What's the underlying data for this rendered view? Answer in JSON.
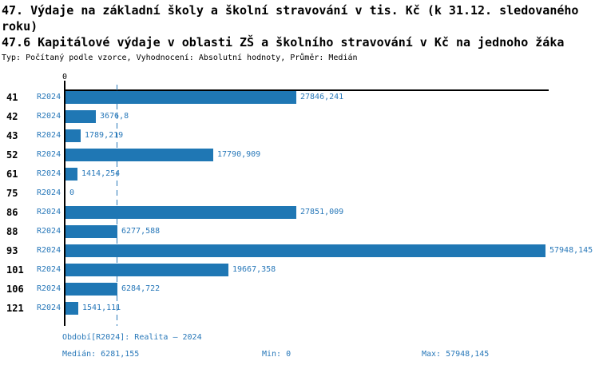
{
  "title": {
    "line1": "47. Výdaje na základní školy a školní stravování v tis. Kč (k 31.12. sledovaného roku)",
    "line2": "47.6 Kapitálové výdaje v oblasti ZŠ a školního stravování v Kč na jednoho žáka",
    "meta": "Typ: Počítaný podle vzorce, Vyhodnocení: Absolutní hodnoty, Průměr: Medián"
  },
  "colors": {
    "bar": "#1f77b4",
    "accent_text": "#2878b9",
    "axis": "#000000"
  },
  "chart_data": {
    "type": "bar",
    "orientation": "horizontal",
    "title": "47.6 Kapitálové výdaje v oblasti ZŠ a školního stravování v Kč na jednoho žáka",
    "categories": [
      "41",
      "42",
      "43",
      "52",
      "61",
      "75",
      "86",
      "88",
      "93",
      "101",
      "106",
      "121"
    ],
    "series": [
      {
        "name": "R2024",
        "values": [
          27846.241,
          3676.8,
          1789.219,
          17790.909,
          1414.254,
          0,
          27851.009,
          6277.588,
          57948.145,
          19667.358,
          6284.722,
          1541.111
        ],
        "value_labels": [
          "27846,241",
          "3676,8",
          "1789,219",
          "17790,909",
          "1414,254",
          "0",
          "27851,009",
          "6277,588",
          "57948,145",
          "19667,358",
          "6284,722",
          "1541,111"
        ]
      }
    ],
    "x_axis": {
      "zero_label": "0",
      "min": 0,
      "max": 57948.145
    },
    "median_line_value": 6281.155,
    "grid": "median-dashed-line-only",
    "legend_position": "none"
  },
  "footer": {
    "period": "Období[R2024]: Realita – 2024",
    "median": "Medián: 6281,155",
    "min": "Min: 0",
    "max": "Max: 57948,145"
  }
}
